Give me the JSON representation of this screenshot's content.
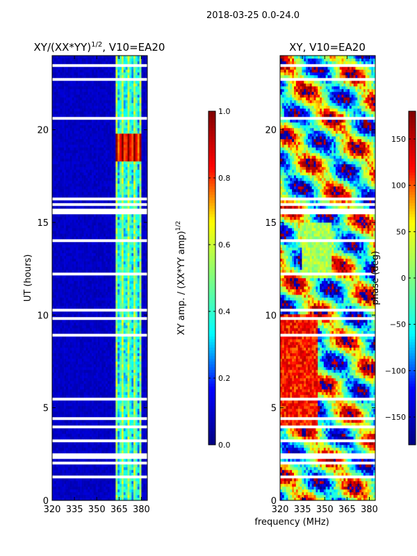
{
  "figure": {
    "suptitle": "2018-03-25 0.0-24.0",
    "shared_xlabel": "frequency (MHz)"
  },
  "chart_data": [
    {
      "type": "heatmap",
      "title": "XY/(XX*YY)",
      "title_superscript": "1/2",
      "title_suffix": ", V10=EA20",
      "ylabel": "UT (hours)",
      "x_ticks": [
        320,
        335,
        350,
        365,
        380
      ],
      "x_tick_labels": [
        "320",
        "335",
        "350",
        "365",
        "380"
      ],
      "xlim": [
        320,
        384
      ],
      "y_ticks": [
        0,
        5,
        10,
        15,
        20
      ],
      "y_tick_labels": [
        "0",
        "5",
        "10",
        "15",
        "20"
      ],
      "ylim": [
        0,
        24
      ],
      "colorbar": {
        "label": "XY amp. / (XX*YY amp)",
        "label_superscript": "1/2",
        "ticks": [
          0.0,
          0.2,
          0.4,
          0.6,
          0.8,
          1.0
        ],
        "tick_labels": [
          "0.0",
          "0.2",
          "0.4",
          "0.6",
          "0.8",
          "1.0"
        ],
        "range": [
          0,
          1
        ],
        "colormap": "jet"
      },
      "bright_band_mhz": [
        363,
        380
      ],
      "peak_ut_hours": [
        18.3,
        19.8
      ],
      "gap_ut_hours": [
        15.4,
        15.8
      ]
    },
    {
      "type": "heatmap",
      "title": "XY, V10=EA20",
      "x_ticks": [
        320,
        335,
        350,
        365,
        380
      ],
      "x_tick_labels": [
        "320",
        "335",
        "350",
        "365",
        "380"
      ],
      "xlim": [
        320,
        384
      ],
      "y_ticks": [
        0,
        5,
        10,
        15,
        20
      ],
      "y_tick_labels": [
        "0",
        "5",
        "10",
        "15",
        "20"
      ],
      "ylim": [
        0,
        24
      ],
      "colorbar": {
        "label": "phase (deg)",
        "ticks": [
          150,
          100,
          50,
          0,
          -50,
          -100,
          -150
        ],
        "tick_labels": [
          "150",
          "100",
          "50",
          "0",
          "−50",
          "−100",
          "−150"
        ],
        "range": [
          -180,
          180
        ],
        "colormap": "jet"
      },
      "gap_ut_hours": [
        15.4,
        15.8
      ]
    }
  ],
  "colors": {
    "jet_stops": [
      "#00007f",
      "#0000ff",
      "#00ffff",
      "#7fff7f",
      "#ffff00",
      "#ff0000",
      "#7f0000"
    ],
    "frame": "#000000",
    "gap": "#ffffff"
  }
}
